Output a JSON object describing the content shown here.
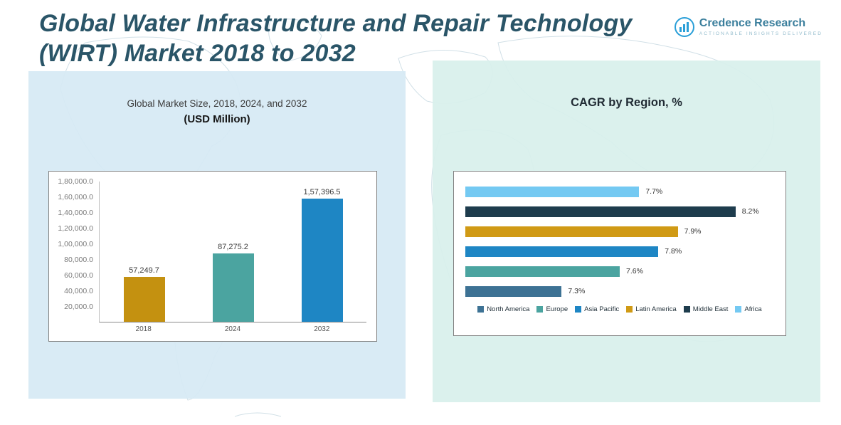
{
  "header": {
    "title_line1": "Global Water Infrastructure and Repair Technology",
    "title_line2": "(WIRT) Market 2018 to 2032"
  },
  "logo": {
    "brand": "Credence Research",
    "tagline": "Actionable Insights Delivered"
  },
  "chart_data": [
    {
      "type": "bar",
      "orientation": "vertical",
      "title": "Global Market Size, 2018, 2024, and 2032",
      "subtitle": "(USD Million)",
      "categories": [
        "2018",
        "2024",
        "2032"
      ],
      "values": [
        57249.7,
        87275.2,
        157396.5
      ],
      "value_labels": [
        "57,249.7",
        "87,275.2",
        "1,57,396.5"
      ],
      "bar_colors": [
        "#c49110",
        "#4ba4a0",
        "#1e86c4"
      ],
      "ylim": [
        0,
        180000
      ],
      "yticks": [
        {
          "value": 20000,
          "label": "20,000.0"
        },
        {
          "value": 40000,
          "label": "40,000.0"
        },
        {
          "value": 60000,
          "label": "60,000.0"
        },
        {
          "value": 80000,
          "label": "80,000.0"
        },
        {
          "value": 100000,
          "label": "1,00,000.0"
        },
        {
          "value": 120000,
          "label": "1,20,000.0"
        },
        {
          "value": 140000,
          "label": "1,40,000.0"
        },
        {
          "value": 160000,
          "label": "1,60,000.0"
        },
        {
          "value": 180000,
          "label": "1,80,000.0"
        }
      ],
      "grid": false
    },
    {
      "type": "bar",
      "orientation": "horizontal",
      "title": "CAGR by Region, %",
      "rows": [
        {
          "region": "Africa",
          "value": 7.7,
          "label": "7.7%"
        },
        {
          "region": "Middle East",
          "value": 8.2,
          "label": "8.2%"
        },
        {
          "region": "Latin America",
          "value": 7.9,
          "label": "7.9%"
        },
        {
          "region": "Asia Pacific",
          "value": 7.8,
          "label": "7.8%"
        },
        {
          "region": "Europe",
          "value": 7.6,
          "label": "7.6%"
        },
        {
          "region": "North America",
          "value": 7.3,
          "label": "7.3%"
        }
      ],
      "xlim": [
        6.8,
        8.4
      ],
      "region_colors": {
        "North America": "#3d7294",
        "Europe": "#4ba4a0",
        "Asia Pacific": "#1e86c4",
        "Latin America": "#d09a15",
        "Middle East": "#1e3c4d",
        "Africa": "#74c9f2"
      },
      "legend": [
        "North America",
        "Europe",
        "Asia Pacific",
        "Latin America",
        "Middle East",
        "Africa"
      ],
      "legend_position": "bottom",
      "grid": false
    }
  ]
}
